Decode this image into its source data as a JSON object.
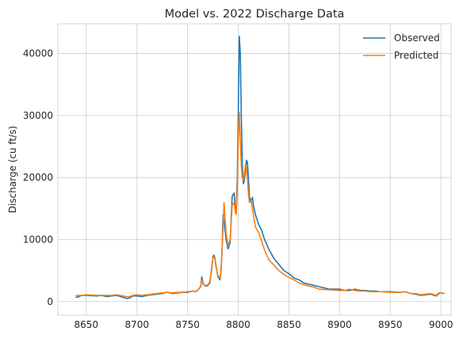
{
  "chart_data": {
    "type": "line",
    "title": "Model vs. 2022 Discharge Data",
    "xlabel": "",
    "ylabel": "Discharge (cu ft/s)",
    "xlim": [
      8622,
      9010
    ],
    "ylim": [
      -2200,
      44800
    ],
    "xticks": [
      8650,
      8700,
      8750,
      8800,
      8850,
      8900,
      8950,
      9000
    ],
    "yticks": [
      0,
      10000,
      20000,
      30000,
      40000
    ],
    "grid": true,
    "legend": "top-right",
    "series": [
      {
        "name": "Observed",
        "color": "#1f77b4",
        "x": [
          8640,
          8643,
          8645,
          8650,
          8660,
          8665,
          8670,
          8675,
          8680,
          8690,
          8693,
          8696,
          8700,
          8705,
          8710,
          8720,
          8725,
          8730,
          8735,
          8740,
          8745,
          8750,
          8755,
          8758,
          8761,
          8763,
          8764,
          8765,
          8766,
          8768,
          8770,
          8772,
          8774,
          8775,
          8776,
          8777,
          8778,
          8780,
          8782,
          8783,
          8784,
          8785,
          8786,
          8788,
          8790,
          8792,
          8794,
          8796,
          8797,
          8798,
          8799,
          8800,
          8801,
          8802,
          8803,
          8804,
          8805,
          8806,
          8807,
          8808,
          8809,
          8810,
          8811,
          8812,
          8813,
          8814,
          8815,
          8817,
          8820,
          8823,
          8826,
          8830,
          8835,
          8840,
          8845,
          8850,
          8855,
          8860,
          8865,
          8870,
          8875,
          8880,
          8890,
          8900,
          8905,
          8910,
          8915,
          8920,
          8925,
          8930,
          8935,
          8940,
          8950,
          8960,
          8965,
          8970,
          8975,
          8980,
          8985,
          8990,
          8995,
          8998,
          9000,
          9003
        ],
        "y": [
          700,
          800,
          1000,
          1000,
          900,
          1000,
          800,
          900,
          1000,
          500,
          600,
          900,
          900,
          800,
          1000,
          1200,
          1300,
          1500,
          1300,
          1400,
          1500,
          1500,
          1700,
          1600,
          2000,
          2500,
          4000,
          3200,
          2700,
          2500,
          2600,
          3000,
          5500,
          7200,
          7500,
          7000,
          5800,
          4000,
          3500,
          5000,
          8000,
          14000,
          13000,
          10000,
          8500,
          9500,
          17000,
          17500,
          15000,
          14500,
          20000,
          30000,
          42800,
          40000,
          30000,
          22000,
          19000,
          19500,
          21000,
          22800,
          22500,
          20000,
          17000,
          16000,
          16500,
          16800,
          15500,
          14000,
          12500,
          11500,
          10000,
          8500,
          7000,
          6000,
          5000,
          4500,
          3800,
          3500,
          3000,
          2800,
          2600,
          2400,
          2000,
          2000,
          1800,
          1800,
          2000,
          1800,
          1800,
          1700,
          1700,
          1600,
          1600,
          1500,
          1600,
          1300,
          1200,
          1000,
          1100,
          1200,
          900,
          1300,
          1400,
          1300
        ]
      },
      {
        "name": "Predicted",
        "color": "#ff7f0e",
        "x": [
          8640,
          8645,
          8650,
          8660,
          8665,
          8670,
          8675,
          8680,
          8690,
          8693,
          8696,
          8700,
          8705,
          8710,
          8720,
          8725,
          8730,
          8735,
          8740,
          8745,
          8750,
          8755,
          8758,
          8761,
          8763,
          8764,
          8765,
          8766,
          8768,
          8770,
          8772,
          8774,
          8775,
          8776,
          8777,
          8778,
          8780,
          8782,
          8783,
          8784,
          8785,
          8786,
          8788,
          8790,
          8792,
          8794,
          8796,
          8797,
          8798,
          8799,
          8800,
          8801,
          8802,
          8803,
          8804,
          8805,
          8806,
          8807,
          8808,
          8809,
          8810,
          8811,
          8812,
          8813,
          8814,
          8815,
          8817,
          8820,
          8823,
          8826,
          8830,
          8835,
          8840,
          8845,
          8850,
          8855,
          8860,
          8865,
          8870,
          8875,
          8880,
          8890,
          8900,
          8905,
          8910,
          8915,
          8920,
          8925,
          8930,
          8935,
          8940,
          8950,
          8960,
          8965,
          8970,
          8975,
          8980,
          8985,
          8990,
          8995,
          8998,
          9000,
          9003
        ],
        "y": [
          1000,
          1000,
          1100,
          1000,
          1000,
          1000,
          1000,
          1100,
          800,
          800,
          1000,
          1100,
          1000,
          1100,
          1300,
          1400,
          1500,
          1400,
          1500,
          1500,
          1600,
          1700,
          1600,
          2000,
          2400,
          3500,
          3000,
          2700,
          2600,
          2700,
          3200,
          5800,
          7000,
          7200,
          6800,
          5600,
          4200,
          3800,
          5200,
          8500,
          12000,
          16000,
          11000,
          9000,
          10000,
          15500,
          16000,
          14500,
          14000,
          18000,
          26000,
          30500,
          26000,
          22000,
          20000,
          19500,
          20500,
          22000,
          21800,
          20000,
          17500,
          16000,
          16200,
          16000,
          15000,
          14000,
          12000,
          11200,
          9800,
          8300,
          6800,
          5900,
          5000,
          4400,
          3900,
          3500,
          3000,
          2700,
          2500,
          2300,
          2000,
          1900,
          1800,
          1800,
          2000,
          1800,
          1700,
          1700,
          1600,
          1600,
          1600,
          1500,
          1500,
          1600,
          1300,
          1300,
          1100,
          1200,
          1300,
          1000,
          1400,
          1400,
          1300
        ]
      }
    ]
  }
}
